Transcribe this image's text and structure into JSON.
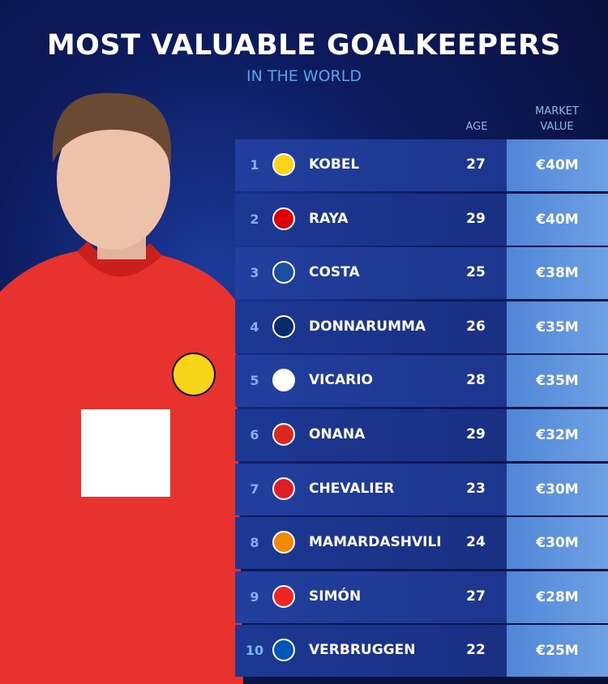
{
  "header": {
    "title": "MOST VALUABLE GOALKEEPERS",
    "subtitle": "IN THE WORLD"
  },
  "table": {
    "columns": [
      "AGE",
      "MARKET VALUE"
    ],
    "rows": [
      [
        1,
        "KOBEL",
        27,
        "€40M"
      ],
      [
        2,
        "RAYA",
        29,
        "€40M"
      ],
      [
        3,
        "COSTA",
        25,
        "€38M"
      ],
      [
        4,
        "DONNARUMMA",
        26,
        "€35M"
      ],
      [
        5,
        "VICARIO",
        28,
        "€35M"
      ],
      [
        6,
        "ONANA",
        29,
        "€32M"
      ],
      [
        7,
        "CHEVALIER",
        23,
        "€30M"
      ],
      [
        8,
        "MAMARDASHVILI",
        24,
        "€30M"
      ],
      [
        9,
        "SIMÓN",
        27,
        "€28M"
      ],
      [
        10,
        "VERBRUGGEN",
        22,
        "€25M"
      ]
    ]
  }
}
